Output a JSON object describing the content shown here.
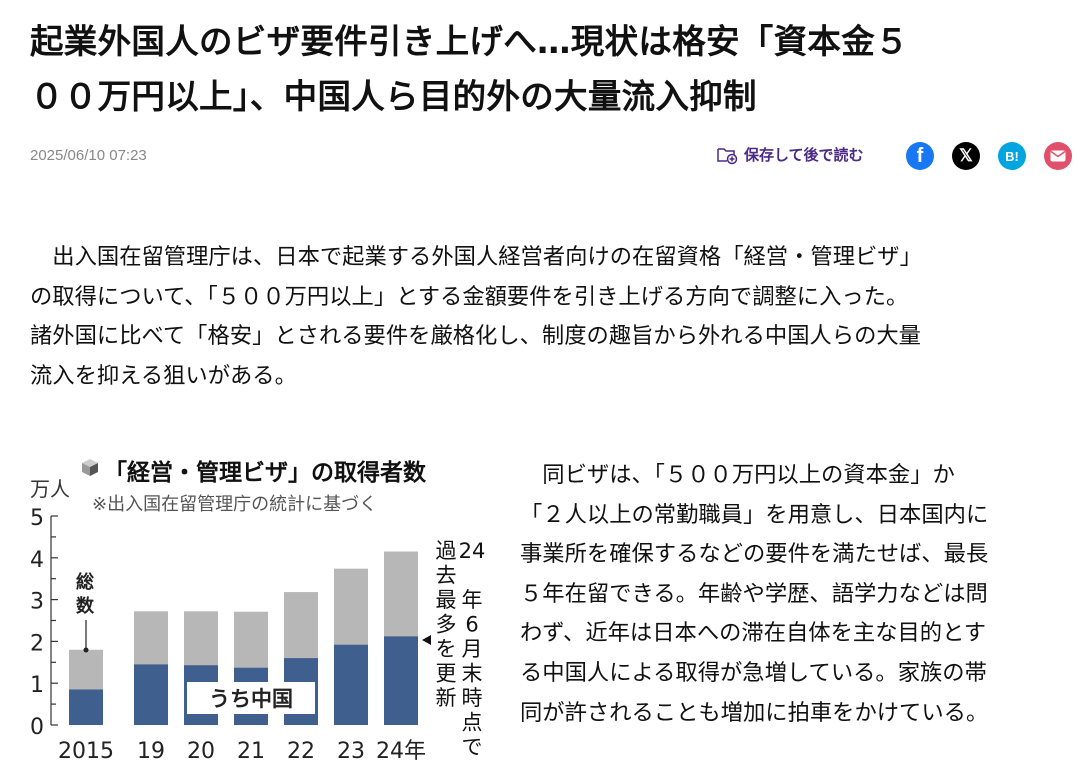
{
  "article": {
    "title_lines": [
      "起業外国人のビザ要件引き上げへ…現状は格安「資本金５",
      "００万円以上」、中国人ら目的外の大量流入抑制"
    ],
    "date": "2025/06/10 07:23",
    "save_label": "保存して後で読む",
    "share": {
      "facebook": "f",
      "x": "𝕏",
      "hatena": "B!",
      "mail_icon": "mail-icon"
    },
    "paragraph1": [
      "　出入国在留管理庁は、日本で起業する外国人経営者向けの在留資格「経営・管理ビザ」",
      "の取得について、「５００万円以上」とする金額要件を引き上げる方向で調整に入った。",
      "諸外国に比べて「格安」とされる要件を厳格化し、制度の趣旨から外れる中国人らの大量",
      "流入を抑える狙いがある。"
    ],
    "paragraph2": [
      "　同ビザは、「５００万円以上の資本金」か",
      "「２人以上の常勤職員」を用意し、日本国内に",
      "事業所を確保するなどの要件を満たせば、最長",
      "５年在留できる。年齢や学歴、語学力などは問",
      "わず、近年は日本への滞在自体を主な目的とす",
      "る中国人による取得が急増している。家族の帯",
      "同が許されることも増加に拍車をかけている。"
    ]
  },
  "chart_data": {
    "type": "bar",
    "stacked": "overlay",
    "title": "「経営・管理ビザ」の取得者数",
    "subtitle": "※出入国在留管理庁の統計に基づく",
    "ylabel": "万人",
    "ylim": [
      0,
      5
    ],
    "yticks": [
      "0",
      "1",
      "2",
      "3",
      "4",
      "5"
    ],
    "categories": [
      "2015",
      "19",
      "20",
      "21",
      "22",
      "23",
      "24年"
    ],
    "series": [
      {
        "name": "総数",
        "values": [
          1.8,
          2.72,
          2.72,
          2.71,
          3.18,
          3.74,
          4.15
        ],
        "color": "#b7b7b7"
      },
      {
        "name": "うち中国",
        "values": [
          0.85,
          1.45,
          1.43,
          1.37,
          1.6,
          1.92,
          2.12
        ],
        "color": "#3f5f8f"
      }
    ],
    "annotation": "24年6月末時点で過去最多を更新",
    "annotation_cols": [
      "24年6月末時点で",
      "過去最多を更新"
    ]
  },
  "colors": {
    "accent": "#4b2a86",
    "facebook": "#1877f2",
    "x": "#000000",
    "hatena": "#00a4de",
    "mail": "#e0506a"
  }
}
